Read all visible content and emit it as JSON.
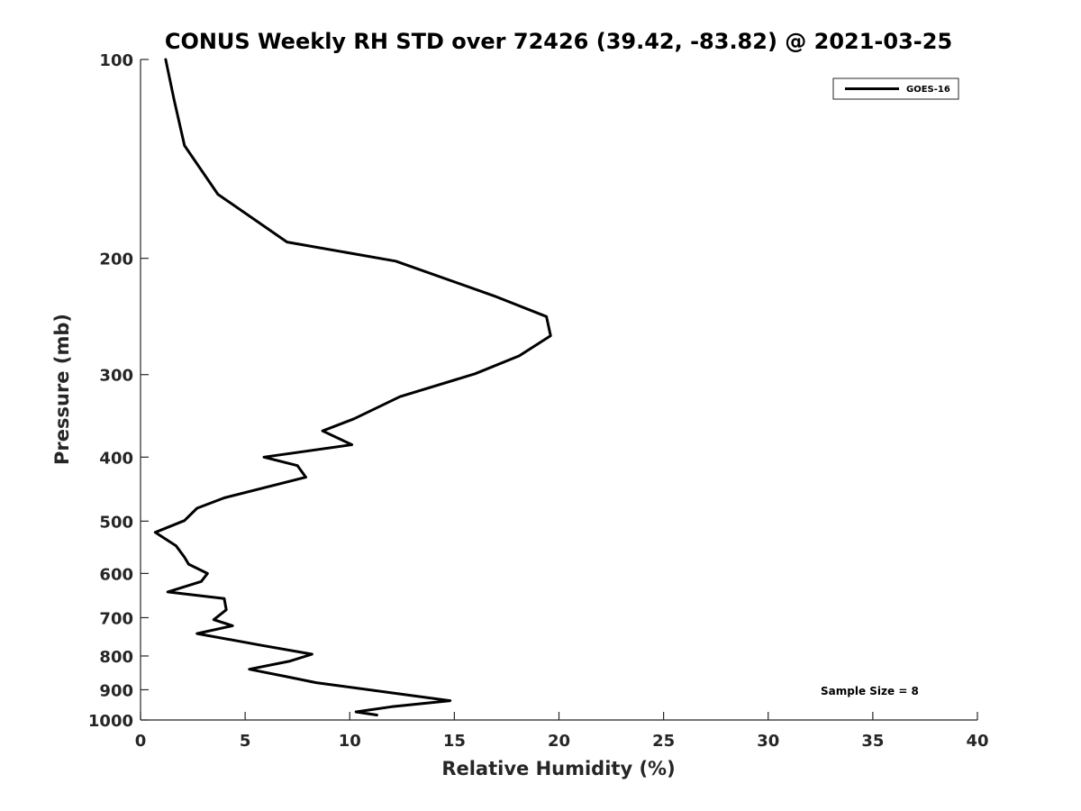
{
  "chart_data": {
    "type": "line",
    "title": "CONUS Weekly RH STD over 72426 (39.42, -83.82) @ 2021-03-25",
    "xlabel": "Relative Humidity (%)",
    "ylabel": "Pressure (mb)",
    "xlim": [
      0,
      40
    ],
    "ylim": [
      1000,
      100
    ],
    "y_scale": "log",
    "y_reversed": true,
    "x_ticks": [
      "0",
      "5",
      "10",
      "15",
      "20",
      "25",
      "30",
      "35",
      "40"
    ],
    "y_ticks": [
      "100",
      "200",
      "300",
      "400",
      "500",
      "600",
      "700",
      "800",
      "900",
      "1000"
    ],
    "grid": false,
    "legend_position": "top-right",
    "annotation": "Sample Size = 8",
    "series": [
      {
        "name": "GOES-16",
        "color": "#000000",
        "points": [
          [
            1.2,
            100
          ],
          [
            1.6,
            115
          ],
          [
            2.1,
            135
          ],
          [
            3.7,
            160
          ],
          [
            7.0,
            189
          ],
          [
            12.2,
            202
          ],
          [
            16.9,
            228
          ],
          [
            19.4,
            245
          ],
          [
            19.6,
            262
          ],
          [
            18.1,
            281
          ],
          [
            16.0,
            299
          ],
          [
            12.4,
            324
          ],
          [
            10.2,
            350
          ],
          [
            8.7,
            365
          ],
          [
            10.1,
            383
          ],
          [
            5.9,
            400
          ],
          [
            7.5,
            412
          ],
          [
            7.9,
            429
          ],
          [
            4.0,
            461
          ],
          [
            2.7,
            478
          ],
          [
            2.1,
            499
          ],
          [
            0.7,
            520
          ],
          [
            1.7,
            545
          ],
          [
            2.1,
            567
          ],
          [
            2.3,
            581
          ],
          [
            3.2,
            600
          ],
          [
            2.9,
            617
          ],
          [
            1.3,
            640
          ],
          [
            4.0,
            655
          ],
          [
            4.1,
            681
          ],
          [
            3.5,
            705
          ],
          [
            4.4,
            720
          ],
          [
            2.7,
            740
          ],
          [
            5.7,
            770
          ],
          [
            8.2,
            795
          ],
          [
            7.1,
            815
          ],
          [
            5.2,
            838
          ],
          [
            7.0,
            860
          ],
          [
            8.4,
            878
          ],
          [
            14.8,
            935
          ],
          [
            12.0,
            955
          ],
          [
            10.3,
            972
          ],
          [
            11.3,
            983
          ]
        ]
      }
    ]
  }
}
